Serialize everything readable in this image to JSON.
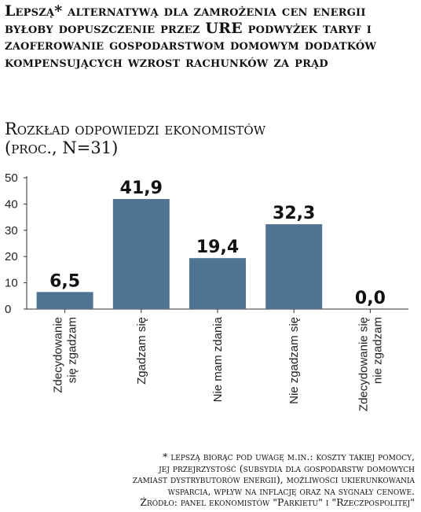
{
  "title": "Lepszą* alternatywą dla zamrożenia cen energii byłoby dopuszczenie przez URE podwyżek taryf i zaoferowanie gospodarstwom domowym dodatków kompensujących wzrost rachunków za prąd",
  "subtitle_line1": "Rozkład odpowiedzi ekonomistów",
  "subtitle_line2": "(proc., N=31)",
  "footnote": {
    "line1": "* lepszą biorąc pod uwagę m.in.: koszty takiej pomocy,",
    "line2": "jej przejrzystość (subsydia dla gospodarstw domowych",
    "line3": "zamiast dystrybutorów energii), możliwości ukierunkowania",
    "line4": "wsparcia, wpływ na inflację oraz na sygnały cenowe.",
    "line5": "Źródło: panel ekonomistów \"Parkietu\" i \"Rzeczpospolitej\""
  },
  "chart_data": {
    "type": "bar",
    "categories": [
      [
        "Zdecydowanie",
        "się zgadzam"
      ],
      [
        "Zgadzam się"
      ],
      [
        "Nie mam zdania"
      ],
      [
        "Nie zgadzam się"
      ],
      [
        "Zdecydowanie się",
        "nie zgadzam"
      ]
    ],
    "values": [
      6.5,
      41.9,
      19.4,
      32.3,
      0.0
    ],
    "value_labels": [
      "6,5",
      "41,9",
      "19,4",
      "32,3",
      "0,0"
    ],
    "yticks": [
      "0",
      "10",
      "20",
      "30",
      "40",
      "50"
    ],
    "ylim": [
      0,
      50
    ],
    "grid": false,
    "bar_color": "#4f7392"
  }
}
